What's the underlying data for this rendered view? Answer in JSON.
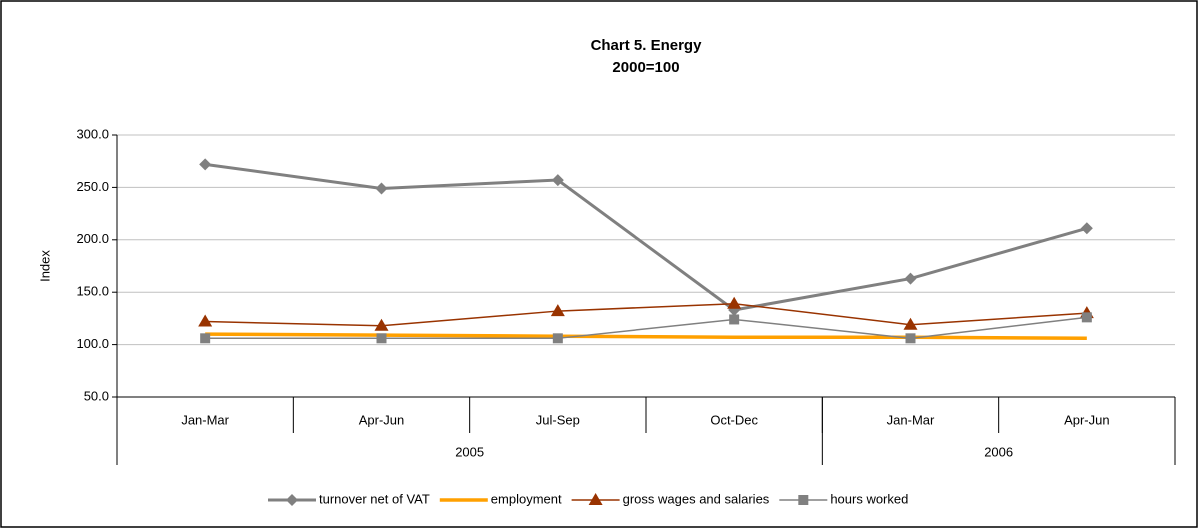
{
  "chart_data": {
    "type": "line",
    "title": "Chart 5.  Energy",
    "subtitle": "2000=100",
    "ylabel": "Index",
    "categories": [
      "Jan-Mar",
      "Apr-Jun",
      "Jul-Sep",
      "Oct-Dec",
      "Jan-Mar",
      "Apr-Jun"
    ],
    "groups": [
      {
        "label": "2005",
        "span": 4
      },
      {
        "label": "2006",
        "span": 2
      }
    ],
    "series": [
      {
        "name": "turnover net of VAT",
        "color": "#808080",
        "marker": "diamond",
        "values": [
          272,
          249,
          257,
          133,
          163,
          211
        ]
      },
      {
        "name": "employment",
        "color": "#ffa000",
        "marker": "none",
        "values": [
          110,
          109,
          108,
          107,
          107,
          106
        ]
      },
      {
        "name": "gross wages and salaries",
        "color": "#993300",
        "marker": "triangle",
        "values": [
          122,
          118,
          132,
          139,
          119,
          130
        ]
      },
      {
        "name": "hours worked",
        "color": "#808080",
        "marker": "square",
        "values": [
          106,
          106,
          106,
          124,
          106,
          126
        ]
      }
    ],
    "ylim": [
      50,
      300
    ],
    "yticks": [
      {
        "value": 50,
        "label": "50.0"
      },
      {
        "value": 100,
        "label": "100.0"
      },
      {
        "value": 150,
        "label": "150.0"
      },
      {
        "value": 200,
        "label": "200.0"
      },
      {
        "value": 250,
        "label": "250.0"
      },
      {
        "value": 300,
        "label": "300.0"
      }
    ],
    "grid": true,
    "legend": "bottom"
  }
}
